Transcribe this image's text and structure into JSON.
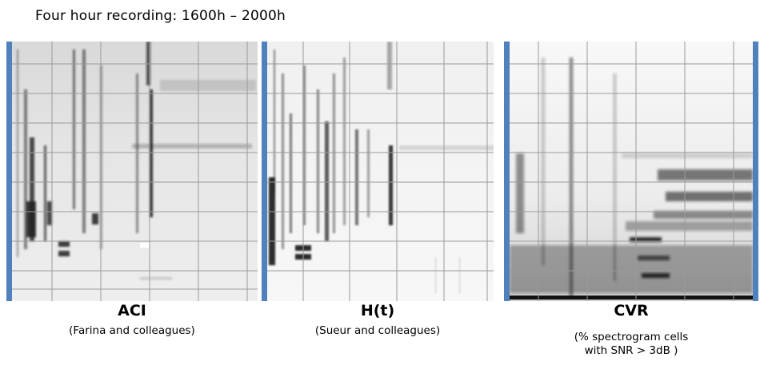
{
  "title": "Four hour recording: 1600h – 2000h",
  "panels": [
    {
      "label": "ACI",
      "credit": "(Farina and colleagues)"
    },
    {
      "label": "H(t)",
      "credit": "(Sueur and colleagues)"
    },
    {
      "label": "CVR",
      "credit_line1": "(% spectrogram cells",
      "credit_line2": "with SNR > 3dB )"
    }
  ],
  "colors": {
    "accent_bar": "#4f81bd",
    "gridline": "#9a9a9a",
    "ink": "#111111"
  }
}
